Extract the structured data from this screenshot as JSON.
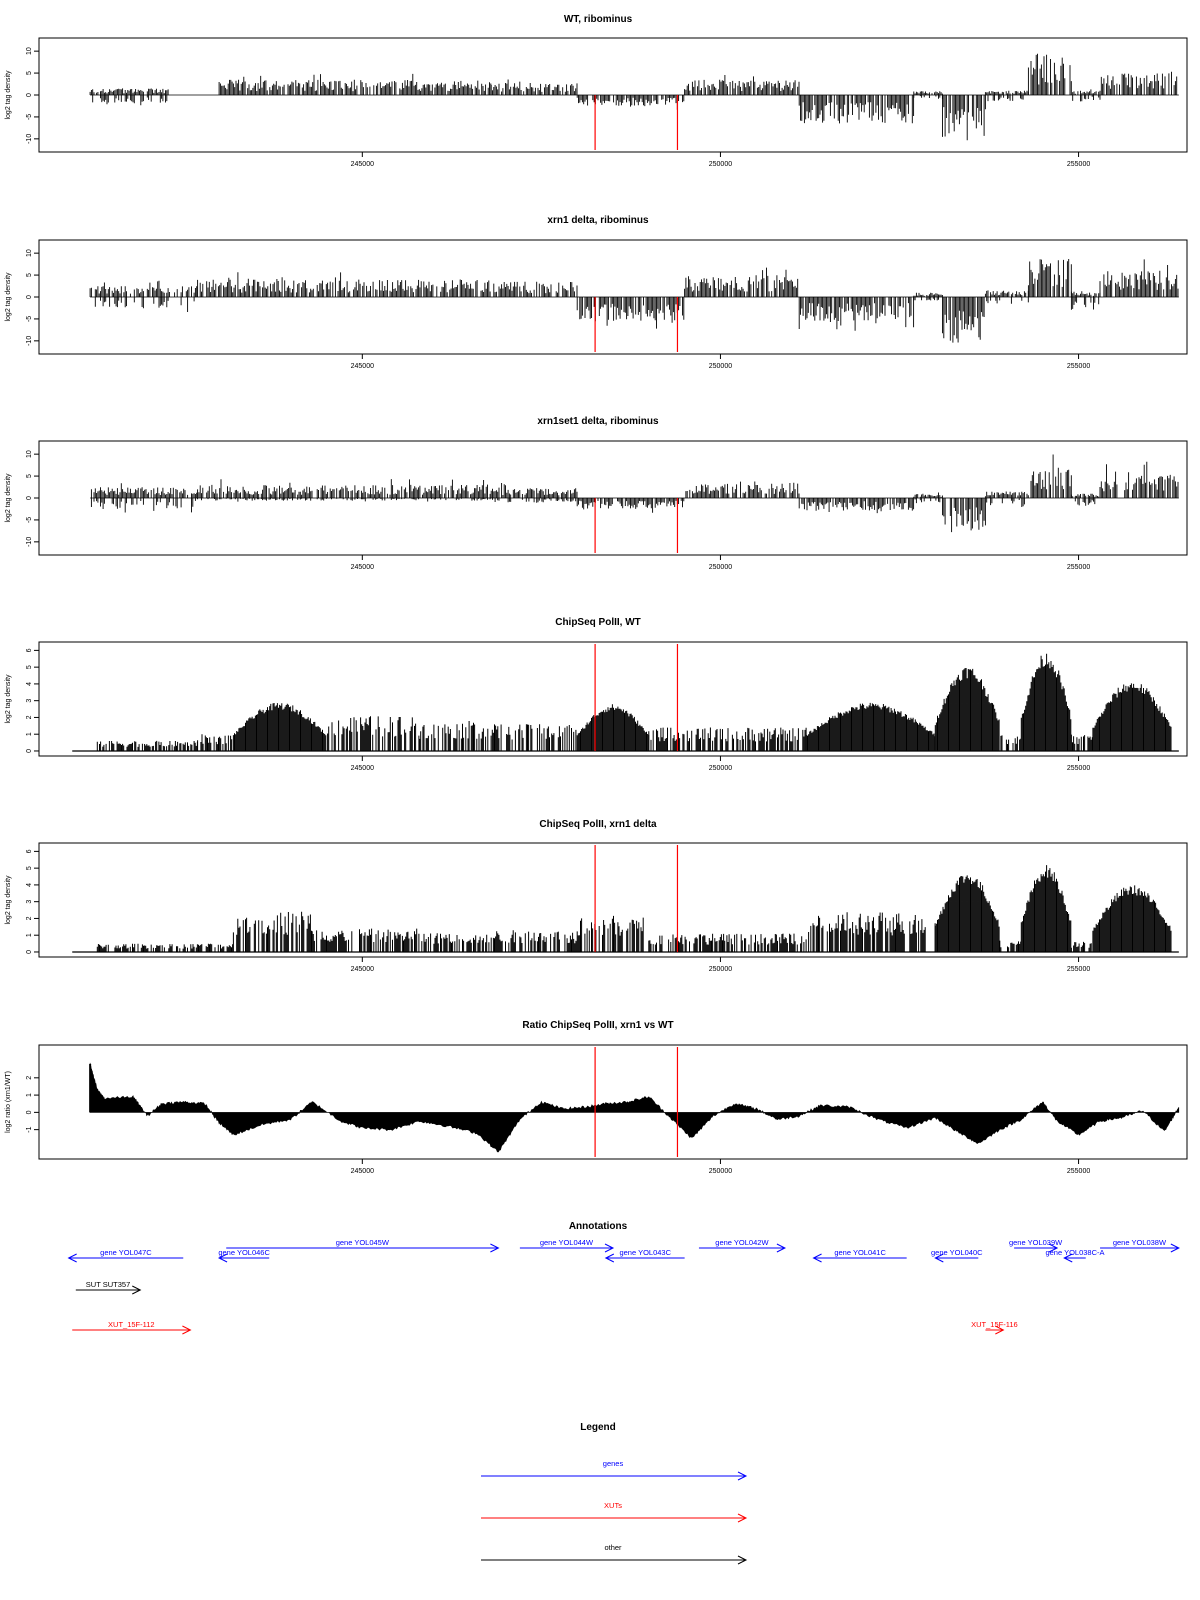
{
  "chart_data": [
    {
      "type": "bar",
      "title": "WT, ribominus",
      "ylabel": "log2 tag density",
      "ylim": [
        -13,
        13
      ],
      "yticks": [
        -10,
        -5,
        0,
        5,
        10
      ],
      "xlim": [
        240500,
        256500
      ],
      "xticks": [
        245000,
        250000,
        255000
      ],
      "markers": [
        248250,
        249400
      ],
      "coverage": [
        {
          "start": 241200,
          "end": 242300,
          "kind": "both",
          "pos": 1.5,
          "neg": 2.0
        },
        {
          "start": 242300,
          "end": 243000,
          "kind": "gap"
        },
        {
          "start": 243000,
          "end": 246800,
          "kind": "pos",
          "pos": 3.5
        },
        {
          "start": 246800,
          "end": 248000,
          "kind": "pos",
          "pos": 2.8
        },
        {
          "start": 248000,
          "end": 249500,
          "kind": "neg",
          "neg": 2.5
        },
        {
          "start": 249500,
          "end": 251100,
          "kind": "pos",
          "pos": 3.5
        },
        {
          "start": 251100,
          "end": 252700,
          "kind": "neg",
          "neg": 6.5
        },
        {
          "start": 252700,
          "end": 253100,
          "kind": "both",
          "pos": 1.0,
          "neg": 1.0
        },
        {
          "start": 253100,
          "end": 253700,
          "kind": "neg",
          "neg": 10.5
        },
        {
          "start": 253700,
          "end": 254300,
          "kind": "both",
          "pos": 1.0,
          "neg": 1.5
        },
        {
          "start": 254300,
          "end": 254900,
          "kind": "pos",
          "pos": 9.5
        },
        {
          "start": 254900,
          "end": 255300,
          "kind": "both",
          "pos": 1.0,
          "neg": 1.5
        },
        {
          "start": 255300,
          "end": 256400,
          "kind": "pos",
          "pos": 5.0
        }
      ]
    },
    {
      "type": "bar",
      "title": "xrn1 delta, ribominus",
      "ylabel": "log2 tag density",
      "ylim": [
        -13,
        13
      ],
      "yticks": [
        -10,
        -5,
        0,
        5,
        10
      ],
      "xlim": [
        240500,
        256500
      ],
      "xticks": [
        245000,
        250000,
        255000
      ],
      "markers": [
        248250,
        249400
      ],
      "coverage": [
        {
          "start": 241200,
          "end": 242700,
          "kind": "both",
          "pos": 2.5,
          "neg": 2.5
        },
        {
          "start": 242700,
          "end": 246800,
          "kind": "pos",
          "pos": 4.0
        },
        {
          "start": 246800,
          "end": 248000,
          "kind": "pos",
          "pos": 3.5
        },
        {
          "start": 248000,
          "end": 249500,
          "kind": "neg",
          "neg": 5.5
        },
        {
          "start": 249500,
          "end": 251100,
          "kind": "pos",
          "pos": 5.0
        },
        {
          "start": 251100,
          "end": 252700,
          "kind": "neg",
          "neg": 5.5
        },
        {
          "start": 252700,
          "end": 253100,
          "kind": "both",
          "pos": 1.0,
          "neg": 1.0
        },
        {
          "start": 253100,
          "end": 253700,
          "kind": "neg",
          "neg": 10.5
        },
        {
          "start": 253700,
          "end": 254300,
          "kind": "both",
          "pos": 1.5,
          "neg": 1.5
        },
        {
          "start": 254300,
          "end": 254900,
          "kind": "pos",
          "pos": 9.0
        },
        {
          "start": 254900,
          "end": 255300,
          "kind": "both",
          "pos": 1.0,
          "neg": 3.0
        },
        {
          "start": 255300,
          "end": 256400,
          "kind": "pos",
          "pos": 6.0
        }
      ]
    },
    {
      "type": "bar",
      "title": "xrn1set1 delta, ribominus",
      "ylabel": "log2 tag density",
      "ylim": [
        -13,
        13
      ],
      "yticks": [
        -10,
        -5,
        0,
        5,
        10
      ],
      "xlim": [
        240500,
        256500
      ],
      "xticks": [
        245000,
        250000,
        255000
      ],
      "markers": [
        248250,
        249400
      ],
      "coverage": [
        {
          "start": 241200,
          "end": 242700,
          "kind": "both",
          "pos": 2.5,
          "neg": 2.5
        },
        {
          "start": 242700,
          "end": 246800,
          "kind": "both",
          "pos": 3.0,
          "neg": 0.6
        },
        {
          "start": 246800,
          "end": 248000,
          "kind": "both",
          "pos": 2.5,
          "neg": 1.0
        },
        {
          "start": 248000,
          "end": 249500,
          "kind": "neg",
          "neg": 2.5
        },
        {
          "start": 249500,
          "end": 251100,
          "kind": "pos",
          "pos": 3.5
        },
        {
          "start": 251100,
          "end": 252700,
          "kind": "neg",
          "neg": 3.0
        },
        {
          "start": 252700,
          "end": 253100,
          "kind": "both",
          "pos": 1.0,
          "neg": 1.0
        },
        {
          "start": 253100,
          "end": 253700,
          "kind": "neg",
          "neg": 7.5
        },
        {
          "start": 253700,
          "end": 254300,
          "kind": "both",
          "pos": 1.5,
          "neg": 1.5
        },
        {
          "start": 254300,
          "end": 254900,
          "kind": "pos",
          "pos": 7.0
        },
        {
          "start": 254900,
          "end": 255300,
          "kind": "both",
          "pos": 1.0,
          "neg": 2.0
        },
        {
          "start": 255300,
          "end": 256400,
          "kind": "pos",
          "pos": 5.5
        }
      ]
    },
    {
      "type": "area",
      "title": "ChipSeq PolII, WT",
      "ylabel": "log2 tag density",
      "ylim": [
        -0.3,
        6.5
      ],
      "yticks": [
        0,
        1,
        2,
        3,
        4,
        5,
        6
      ],
      "xlim": [
        240500,
        256500
      ],
      "xticks": [
        245000,
        250000,
        255000
      ],
      "markers": [
        248250,
        249400
      ],
      "peaks": [
        {
          "start": 241300,
          "end": 242700,
          "height": 0.6
        },
        {
          "start": 242700,
          "end": 243200,
          "height": 1.0
        },
        {
          "start": 243200,
          "end": 244500,
          "height": 2.9
        },
        {
          "start": 244500,
          "end": 245800,
          "height": 2.1
        },
        {
          "start": 245800,
          "end": 246800,
          "height": 1.8
        },
        {
          "start": 246800,
          "end": 248000,
          "height": 1.6
        },
        {
          "start": 248000,
          "end": 249000,
          "height": 2.8
        },
        {
          "start": 249000,
          "end": 251200,
          "height": 1.4
        },
        {
          "start": 251200,
          "end": 253000,
          "height": 2.9
        },
        {
          "start": 253000,
          "end": 253900,
          "height": 5.1
        },
        {
          "start": 253900,
          "end": 254200,
          "height": 1.0
        },
        {
          "start": 254200,
          "end": 254900,
          "height": 5.9
        },
        {
          "start": 254900,
          "end": 255200,
          "height": 1.0
        },
        {
          "start": 255200,
          "end": 256300,
          "height": 4.2
        }
      ]
    },
    {
      "type": "area",
      "title": "ChipSeq PolII, xrn1 delta",
      "ylabel": "log2 tag density",
      "ylim": [
        -0.3,
        6.5
      ],
      "yticks": [
        0,
        1,
        2,
        3,
        4,
        5,
        6
      ],
      "xlim": [
        240500,
        256500
      ],
      "xticks": [
        245000,
        250000,
        255000
      ],
      "markers": [
        248250,
        249400
      ],
      "peaks": [
        {
          "start": 241300,
          "end": 243200,
          "height": 0.5
        },
        {
          "start": 243200,
          "end": 244300,
          "height": 2.5
        },
        {
          "start": 244300,
          "end": 245800,
          "height": 1.4
        },
        {
          "start": 245800,
          "end": 246800,
          "height": 1.2
        },
        {
          "start": 246800,
          "end": 248000,
          "height": 1.3
        },
        {
          "start": 248000,
          "end": 249000,
          "height": 2.2
        },
        {
          "start": 249000,
          "end": 251200,
          "height": 1.1
        },
        {
          "start": 251200,
          "end": 253000,
          "height": 2.4
        },
        {
          "start": 253000,
          "end": 253900,
          "height": 4.8
        },
        {
          "start": 253900,
          "end": 254200,
          "height": 0.7
        },
        {
          "start": 254200,
          "end": 254900,
          "height": 5.2
        },
        {
          "start": 254900,
          "end": 255200,
          "height": 0.6
        },
        {
          "start": 255200,
          "end": 256300,
          "height": 4.0
        }
      ]
    },
    {
      "type": "area",
      "title": "Ratio ChipSeq PolII, xrn1 vs WT",
      "ylabel": "log2 ratio (xrn1/WT)",
      "ylim": [
        -2.7,
        3.9
      ],
      "yticks": [
        -1,
        0,
        1,
        2
      ],
      "xlim": [
        240500,
        256500
      ],
      "xticks": [
        245000,
        250000,
        255000
      ],
      "markers": [
        248250,
        249400
      ],
      "x": [
        241200,
        241300,
        241400,
        241800,
        242000,
        242200,
        242500,
        242800,
        243000,
        243200,
        243600,
        244000,
        244300,
        244700,
        245000,
        245400,
        245800,
        246200,
        246600,
        246900,
        247200,
        247500,
        247800,
        248100,
        248400,
        248700,
        249000,
        249300,
        249600,
        249900,
        250200,
        250500,
        250800,
        251100,
        251400,
        251800,
        252200,
        252600,
        253000,
        253300,
        253600,
        253900,
        254200,
        254500,
        254700,
        255000,
        255300,
        255600,
        255900,
        256200,
        256400
      ],
      "y": [
        2.8,
        1.3,
        0.8,
        0.9,
        -0.2,
        0.5,
        0.6,
        0.5,
        -0.6,
        -1.3,
        -0.7,
        -0.4,
        0.6,
        -0.5,
        -0.9,
        -1.0,
        -0.5,
        -0.8,
        -1.2,
        -2.3,
        -0.4,
        0.6,
        0.2,
        0.3,
        0.5,
        0.6,
        0.9,
        -0.3,
        -1.5,
        -0.2,
        0.5,
        0.2,
        -0.4,
        -0.2,
        0.4,
        0.3,
        -0.4,
        -0.9,
        -0.3,
        -1.1,
        -1.8,
        -1.0,
        -0.4,
        0.6,
        -0.5,
        -1.3,
        -0.5,
        -0.3,
        0.1,
        -1.1,
        0.3
      ]
    }
  ],
  "annotations": {
    "title": "Annotations",
    "items": [
      {
        "label": "gene YOL047C",
        "start": 242500,
        "end": 240900,
        "row": 1,
        "color": "#0000ff"
      },
      {
        "label": "gene YOL046C",
        "start": 243700,
        "end": 243000,
        "row": 1,
        "color": "#0000ff"
      },
      {
        "label": "gene YOL045W",
        "start": 243100,
        "end": 246900,
        "row": 0,
        "color": "#0000ff"
      },
      {
        "label": "gene YOL044W",
        "start": 247200,
        "end": 248500,
        "row": 0,
        "color": "#0000ff"
      },
      {
        "label": "gene YOL043C",
        "start": 249500,
        "end": 248400,
        "row": 1,
        "color": "#0000ff"
      },
      {
        "label": "gene YOL042W",
        "start": 249700,
        "end": 250900,
        "row": 0,
        "color": "#0000ff"
      },
      {
        "label": "gene YOL041C",
        "start": 252600,
        "end": 251300,
        "row": 1,
        "color": "#0000ff"
      },
      {
        "label": "gene YOL040C",
        "start": 253600,
        "end": 253000,
        "row": 1,
        "color": "#0000ff"
      },
      {
        "label": "gene YOL039W",
        "start": 254100,
        "end": 254700,
        "row": 0,
        "color": "#0000ff"
      },
      {
        "label": "gene YOL038C-A",
        "start": 255100,
        "end": 254800,
        "row": 1,
        "color": "#0000ff"
      },
      {
        "label": "gene YOL038W",
        "start": 255300,
        "end": 256400,
        "row": 0,
        "color": "#0000ff"
      },
      {
        "label": "SUT SUT357",
        "start": 241000,
        "end": 241900,
        "row": 2,
        "color": "#000000"
      },
      {
        "label": "XUT_15F-112",
        "start": 240950,
        "end": 242600,
        "row": 3,
        "color": "#ff0000"
      },
      {
        "label": "XUT_15F-116",
        "start": 253700,
        "end": 253950,
        "row": 3,
        "color": "#ff0000"
      }
    ]
  },
  "legend": {
    "title": "Legend",
    "items": [
      {
        "label": "genes",
        "color": "#0000ff"
      },
      {
        "label": "XUTs",
        "color": "#ff0000"
      },
      {
        "label": "other",
        "color": "#000000"
      }
    ]
  },
  "colors": {
    "marker_line": "#ff0000",
    "bars": "#000000",
    "frame": "#000000"
  }
}
